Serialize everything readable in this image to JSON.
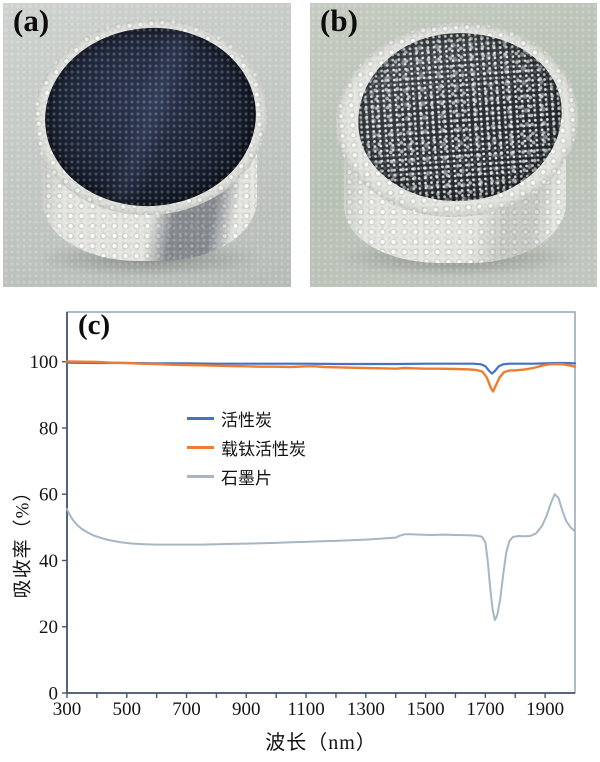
{
  "figure": {
    "photo_a": {
      "label": "(a)"
    },
    "photo_b": {
      "label": "(b)"
    },
    "panel_c": {
      "label": "(c)"
    }
  },
  "chart_data": {
    "type": "line",
    "title": "",
    "xlabel": "波长（nm）",
    "ylabel": "吸收率（%）",
    "xlim": [
      300,
      2000
    ],
    "ylim": [
      0,
      115
    ],
    "x_ticks_labeled": [
      300,
      500,
      700,
      900,
      1100,
      1300,
      1500,
      1700,
      1900
    ],
    "x_ticks_minor": [
      400,
      600,
      800,
      1000,
      1200,
      1400,
      1600,
      1800
    ],
    "y_ticks": [
      0,
      20,
      40,
      60,
      80,
      100
    ],
    "grid": false,
    "legend_position": "inside-center-left",
    "colors": {
      "axis": "#45576a",
      "border": "#8197a8",
      "tick_text": "#141414"
    },
    "series": [
      {
        "name": "活性炭",
        "color": "#4472c4",
        "width": 2.2,
        "points": [
          [
            300,
            99.7
          ],
          [
            400,
            99.6
          ],
          [
            500,
            99.6
          ],
          [
            600,
            99.5
          ],
          [
            700,
            99.5
          ],
          [
            800,
            99.4
          ],
          [
            900,
            99.4
          ],
          [
            1000,
            99.4
          ],
          [
            1100,
            99.4
          ],
          [
            1200,
            99.3
          ],
          [
            1300,
            99.3
          ],
          [
            1400,
            99.3
          ],
          [
            1500,
            99.4
          ],
          [
            1600,
            99.4
          ],
          [
            1660,
            99.4
          ],
          [
            1685,
            99.2
          ],
          [
            1700,
            98.6
          ],
          [
            1712,
            97.3
          ],
          [
            1722,
            96.4
          ],
          [
            1732,
            97.2
          ],
          [
            1745,
            98.6
          ],
          [
            1760,
            99.2
          ],
          [
            1780,
            99.4
          ],
          [
            1820,
            99.4
          ],
          [
            1860,
            99.4
          ],
          [
            1900,
            99.5
          ],
          [
            1940,
            99.6
          ],
          [
            1970,
            99.6
          ],
          [
            2000,
            99.5
          ]
        ]
      },
      {
        "name": "载钛活性炭",
        "color": "#ed7d31",
        "width": 2.4,
        "points": [
          [
            300,
            100.1
          ],
          [
            350,
            100.0
          ],
          [
            400,
            99.9
          ],
          [
            450,
            99.7
          ],
          [
            500,
            99.6
          ],
          [
            550,
            99.4
          ],
          [
            600,
            99.3
          ],
          [
            650,
            99.1
          ],
          [
            700,
            99.0
          ],
          [
            750,
            98.9
          ],
          [
            800,
            98.8
          ],
          [
            850,
            98.7
          ],
          [
            900,
            98.6
          ],
          [
            950,
            98.5
          ],
          [
            1000,
            98.5
          ],
          [
            1050,
            98.4
          ],
          [
            1100,
            98.6
          ],
          [
            1130,
            98.6
          ],
          [
            1160,
            98.4
          ],
          [
            1200,
            98.3
          ],
          [
            1250,
            98.2
          ],
          [
            1300,
            98.1
          ],
          [
            1350,
            98.0
          ],
          [
            1400,
            97.9
          ],
          [
            1430,
            98.1
          ],
          [
            1460,
            98.0
          ],
          [
            1500,
            97.9
          ],
          [
            1550,
            97.9
          ],
          [
            1600,
            97.8
          ],
          [
            1640,
            97.7
          ],
          [
            1670,
            97.5
          ],
          [
            1690,
            97.0
          ],
          [
            1705,
            95.2
          ],
          [
            1718,
            92.2
          ],
          [
            1726,
            91.0
          ],
          [
            1735,
            92.8
          ],
          [
            1748,
            95.3
          ],
          [
            1762,
            96.8
          ],
          [
            1778,
            97.3
          ],
          [
            1800,
            97.4
          ],
          [
            1830,
            97.6
          ],
          [
            1860,
            98.1
          ],
          [
            1890,
            98.8
          ],
          [
            1915,
            99.2
          ],
          [
            1940,
            99.3
          ],
          [
            1960,
            99.2
          ],
          [
            1980,
            98.9
          ],
          [
            2000,
            98.5
          ]
        ]
      },
      {
        "name": "石墨片",
        "color": "#a7b6c4",
        "width": 2.0,
        "points": [
          [
            300,
            55.5
          ],
          [
            310,
            53.6
          ],
          [
            320,
            52.2
          ],
          [
            335,
            50.6
          ],
          [
            350,
            49.5
          ],
          [
            370,
            48.4
          ],
          [
            390,
            47.5
          ],
          [
            420,
            46.6
          ],
          [
            450,
            46.0
          ],
          [
            480,
            45.5
          ],
          [
            520,
            45.1
          ],
          [
            560,
            44.9
          ],
          [
            600,
            44.8
          ],
          [
            650,
            44.8
          ],
          [
            700,
            44.8
          ],
          [
            750,
            44.8
          ],
          [
            800,
            44.9
          ],
          [
            850,
            45.0
          ],
          [
            900,
            45.1
          ],
          [
            950,
            45.2
          ],
          [
            1000,
            45.3
          ],
          [
            1050,
            45.5
          ],
          [
            1100,
            45.6
          ],
          [
            1150,
            45.8
          ],
          [
            1200,
            45.9
          ],
          [
            1250,
            46.1
          ],
          [
            1300,
            46.3
          ],
          [
            1350,
            46.6
          ],
          [
            1400,
            46.9
          ],
          [
            1415,
            47.5
          ],
          [
            1430,
            47.9
          ],
          [
            1450,
            47.9
          ],
          [
            1480,
            47.8
          ],
          [
            1520,
            47.7
          ],
          [
            1560,
            47.8
          ],
          [
            1600,
            47.7
          ],
          [
            1640,
            47.6
          ],
          [
            1670,
            47.5
          ],
          [
            1688,
            47.2
          ],
          [
            1700,
            45.5
          ],
          [
            1708,
            40.0
          ],
          [
            1716,
            32.0
          ],
          [
            1724,
            25.5
          ],
          [
            1732,
            22.0
          ],
          [
            1740,
            23.5
          ],
          [
            1750,
            28.5
          ],
          [
            1760,
            36.0
          ],
          [
            1770,
            42.5
          ],
          [
            1780,
            45.8
          ],
          [
            1792,
            47.1
          ],
          [
            1810,
            47.4
          ],
          [
            1830,
            47.3
          ],
          [
            1850,
            47.4
          ],
          [
            1870,
            48.2
          ],
          [
            1890,
            50.5
          ],
          [
            1905,
            53.5
          ],
          [
            1920,
            57.5
          ],
          [
            1932,
            60.0
          ],
          [
            1945,
            58.8
          ],
          [
            1958,
            55.0
          ],
          [
            1970,
            52.0
          ],
          [
            1985,
            50.0
          ],
          [
            2000,
            48.8
          ]
        ]
      }
    ]
  }
}
